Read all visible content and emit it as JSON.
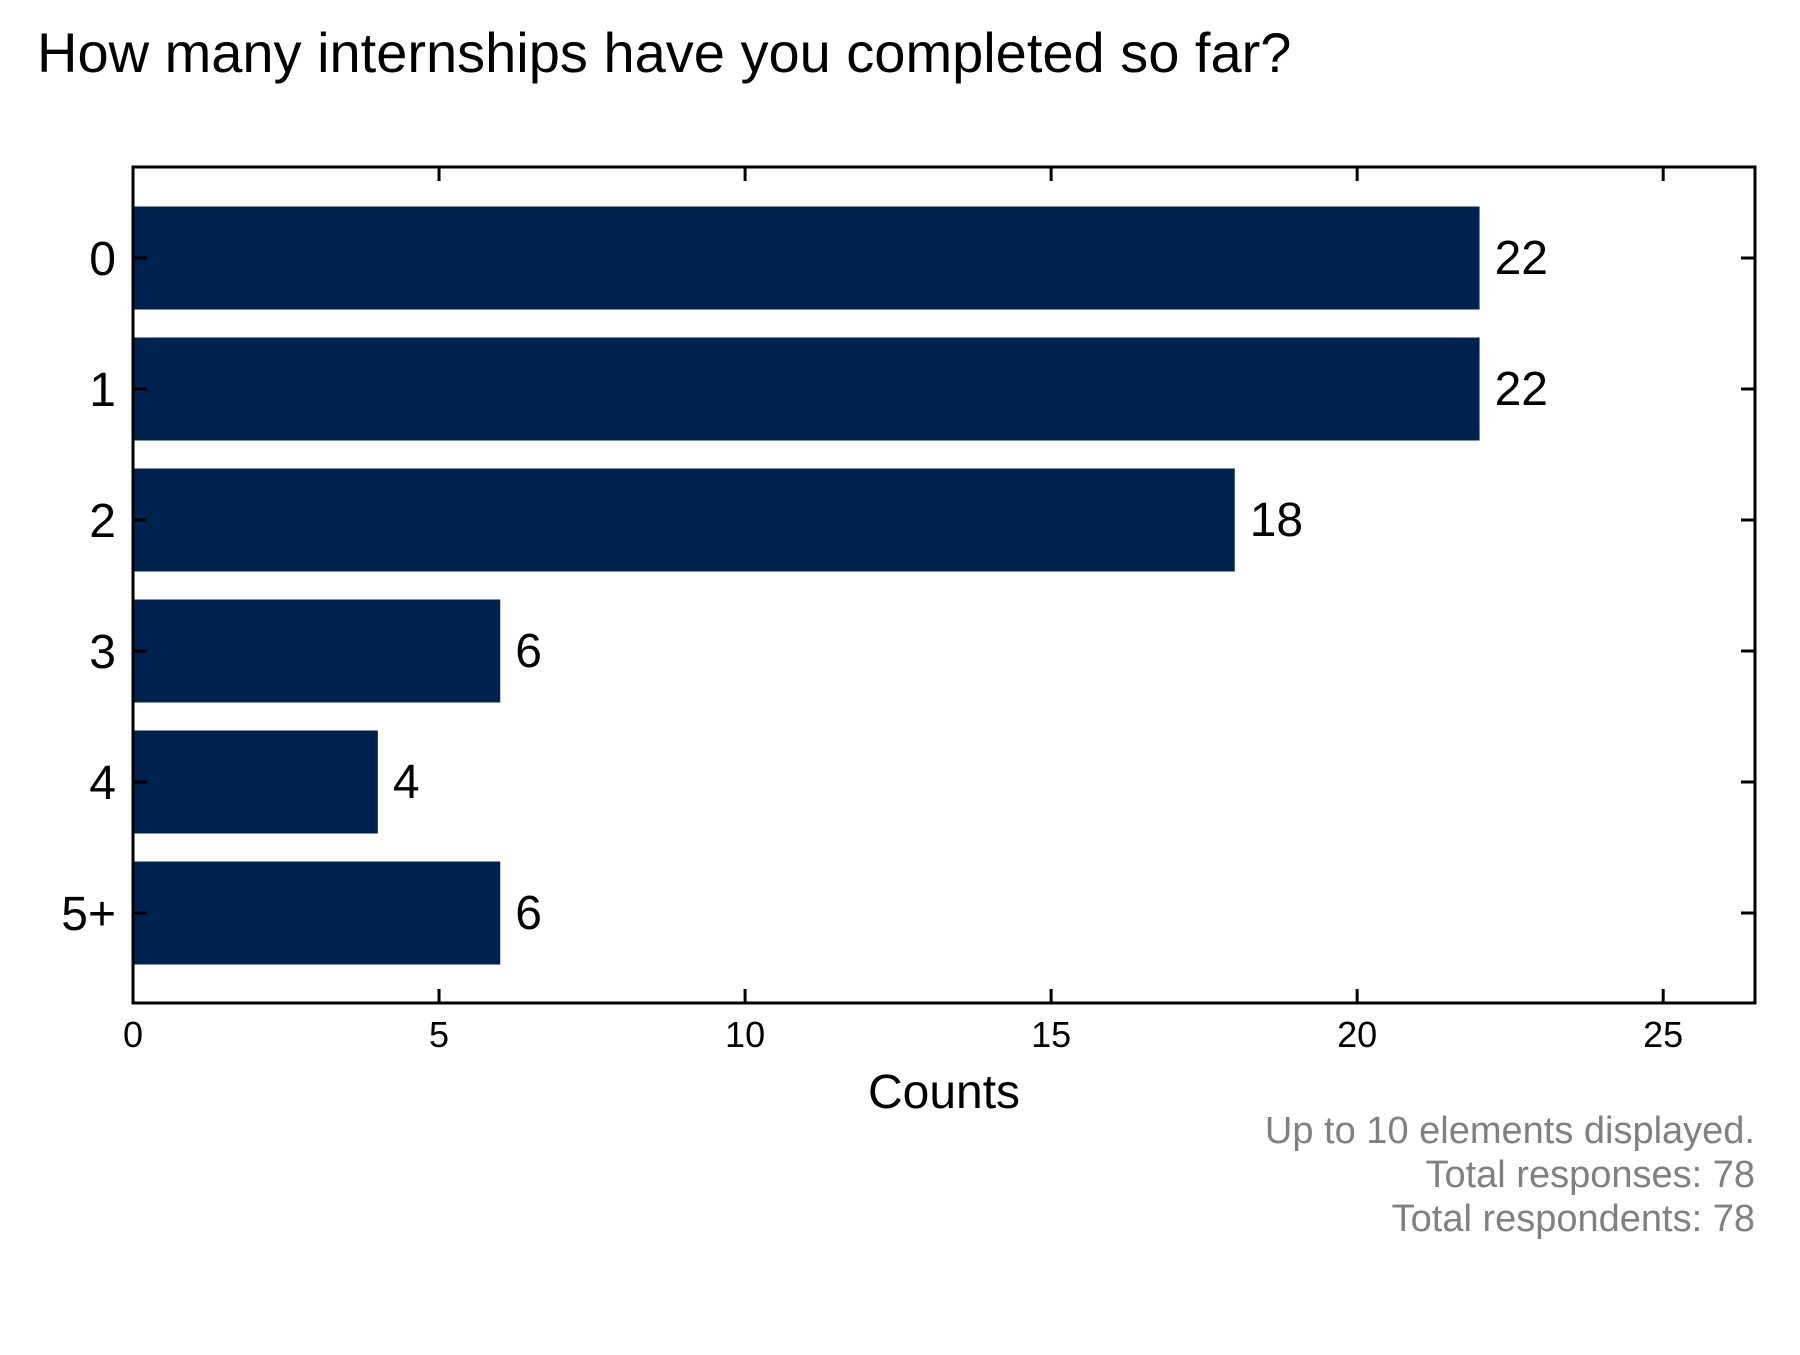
{
  "chart_data": {
    "type": "bar",
    "orientation": "horizontal",
    "title": "How many internships have you completed so far?",
    "categories": [
      "0",
      "1",
      "2",
      "3",
      "4",
      "5+"
    ],
    "values": [
      22,
      22,
      18,
      6,
      4,
      6
    ],
    "xlabel": "Counts",
    "ylabel": "",
    "xlim": [
      0,
      26.5
    ],
    "xticks": [
      0,
      5,
      10,
      15,
      20,
      25
    ],
    "grid": false,
    "legend": "none",
    "bar_color": "#00224e",
    "footnotes": [
      "Up to 10 elements displayed.",
      "Total responses: 78",
      "Total respondents: 78"
    ]
  }
}
